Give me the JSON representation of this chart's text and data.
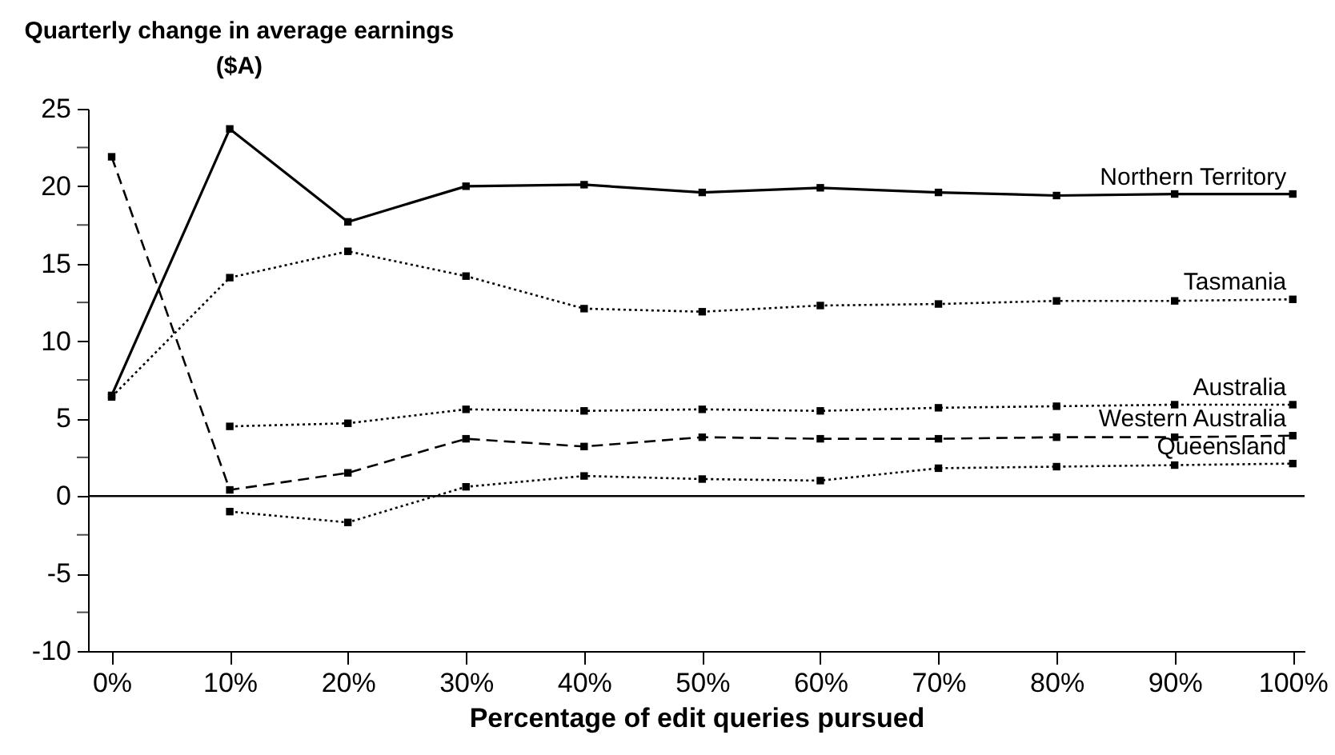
{
  "chart_data": {
    "type": "line",
    "ylabel": "Quarterly change in average earnings ($A)",
    "xlabel": "Percentage of edit queries pursued",
    "x": [
      0,
      10,
      20,
      30,
      40,
      50,
      60,
      70,
      80,
      90,
      100
    ],
    "xlim": [
      -2,
      101
    ],
    "xticks": [
      {
        "value": 0,
        "label": "0%"
      },
      {
        "value": 10,
        "label": "10%"
      },
      {
        "value": 20,
        "label": "20%"
      },
      {
        "value": 30,
        "label": "30%"
      },
      {
        "value": 40,
        "label": "40%"
      },
      {
        "value": 50,
        "label": "50%"
      },
      {
        "value": 60,
        "label": "60%"
      },
      {
        "value": 70,
        "label": "70%"
      },
      {
        "value": 80,
        "label": "80%"
      },
      {
        "value": 90,
        "label": "90%"
      },
      {
        "value": 100,
        "label": "100%"
      }
    ],
    "ylim": [
      -10,
      25
    ],
    "yticks": [
      -10,
      {
        "value": -7.5,
        "label": null
      },
      -5,
      {
        "value": -2.5,
        "label": null
      },
      0,
      {
        "value": 2.5,
        "label": null
      },
      5,
      {
        "value": 7.5,
        "label": null
      },
      10,
      {
        "value": 12.5,
        "label": null
      },
      15,
      {
        "value": 17.5,
        "label": null
      },
      20,
      {
        "value": 22.5,
        "label": null
      },
      25
    ],
    "grid": false,
    "legend": false,
    "marker": "square",
    "ref_lines": [
      {
        "axis": "y",
        "value": 0,
        "color": "#000000"
      }
    ],
    "series": [
      {
        "name": "Northern Territory",
        "color": "#000000",
        "line_style": "solid",
        "values": [
          6.5,
          23.7,
          17.7,
          20.0,
          20.1,
          19.6,
          19.9,
          19.6,
          19.4,
          19.5,
          19.5
        ]
      },
      {
        "name": "Tasmania",
        "color": "#000000",
        "line_style": "dotted",
        "values": [
          6.4,
          14.1,
          15.8,
          14.2,
          12.1,
          11.9,
          12.3,
          12.4,
          12.6,
          12.6,
          12.7
        ]
      },
      {
        "name": "Australia",
        "color": "#000000",
        "line_style": "dotted",
        "values": [
          null,
          4.5,
          4.7,
          5.6,
          5.5,
          5.6,
          5.5,
          5.7,
          5.8,
          5.9,
          5.9
        ]
      },
      {
        "name": "Western Australia",
        "color": "#000000",
        "line_style": "dashed",
        "values": [
          21.9,
          0.4,
          1.5,
          3.7,
          3.2,
          3.8,
          3.7,
          3.7,
          3.8,
          3.8,
          3.9
        ]
      },
      {
        "name": "Queensland",
        "color": "#000000",
        "line_style": "dotted",
        "values": [
          null,
          -1.0,
          -1.7,
          0.6,
          1.3,
          1.1,
          1.0,
          1.8,
          1.9,
          2.0,
          2.1
        ]
      }
    ]
  }
}
